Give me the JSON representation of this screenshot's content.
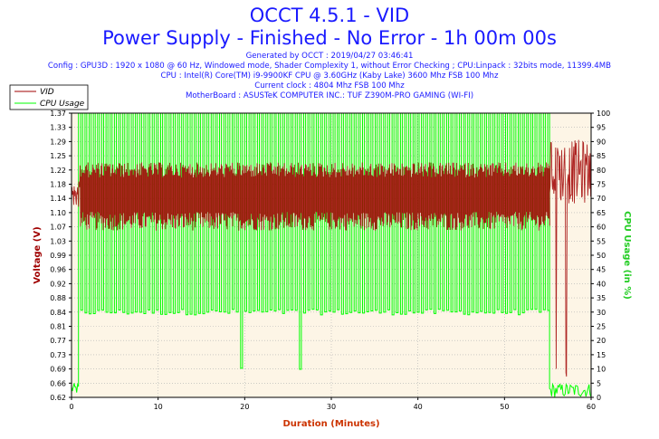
{
  "header": {
    "title": "OCCT 4.5.1 - VID",
    "subtitle": "Power Supply - Finished - No Error - 1h 00m 00s",
    "generated": "Generated by OCCT : 2019/04/27 03:46:41",
    "config": "Config : GPU3D : 1920 x 1080 @ 60 Hz, Windowed mode, Shader Complexity 1, without Error Checking ; CPU:Linpack : 32bits mode, 11399.4MB",
    "cpu": "CPU : Intel(R) Core(TM) i9-9900KF CPU @ 3.60GHz (Kaby Lake) 3600 Mhz FSB 100 Mhz",
    "clock": "Current clock : 4804 Mhz FSB 100 Mhz",
    "motherboard": "MotherBoard : ASUSTeK COMPUTER INC.: TUF Z390M-PRO GAMING (WI-FI)"
  },
  "colors": {
    "vid": "#a00000",
    "cpu": "#00ff00",
    "overlap": "#556b00",
    "plot_bg": "#fdf5e6",
    "axis_left": "#a00000",
    "axis_right": "#22cc22",
    "xlabel": "#cc3300"
  },
  "chart_data": {
    "type": "line",
    "xlabel": "Duration (Minutes)",
    "ylabel": "Voltage (V)",
    "y2label": "CPU Usage (in %)",
    "xlim": [
      0,
      60
    ],
    "ylim": [
      0.62,
      1.37
    ],
    "y2lim": [
      0,
      100
    ],
    "x_ticks": [
      "0",
      "10",
      "20",
      "30",
      "40",
      "50",
      "60"
    ],
    "y_ticks": [
      "0.62",
      "0.66",
      "0.69",
      "0.73",
      "0.77",
      "0.81",
      "0.84",
      "0.88",
      "0.92",
      "0.96",
      "0.99",
      "1.03",
      "1.07",
      "1.10",
      "1.14",
      "1.18",
      "1.22",
      "1.25",
      "1.29",
      "1.33",
      "1.37"
    ],
    "y2_ticks": [
      "0",
      "5",
      "10",
      "15",
      "20",
      "25",
      "30",
      "35",
      "40",
      "45",
      "50",
      "55",
      "60",
      "65",
      "70",
      "75",
      "80",
      "85",
      "90",
      "95",
      "100"
    ],
    "grid": true,
    "legend_position": "top-left",
    "series": [
      {
        "name": "VID",
        "axis": "left",
        "segments": [
          {
            "x_range": [
              0,
              1.0
            ],
            "low": 1.12,
            "high": 1.19,
            "note": "idle start"
          },
          {
            "x_range": [
              1.0,
              55.2
            ],
            "low": 1.06,
            "high": 1.24,
            "note": "load: oscillating"
          },
          {
            "x_range": [
              55.2,
              60
            ],
            "low": 1.13,
            "high": 1.3,
            "dips_to": 0.64
          }
        ]
      },
      {
        "name": "CPU Usage",
        "axis": "right",
        "segments": [
          {
            "x_range": [
              0,
              0.8
            ],
            "low": 1,
            "high": 5
          },
          {
            "x_range": [
              0.8,
              55.2
            ],
            "low": 29,
            "high": 100,
            "note": "square-wave load"
          },
          {
            "x_range": [
              55.2,
              60
            ],
            "low": 0,
            "high": 5
          }
        ]
      }
    ]
  }
}
